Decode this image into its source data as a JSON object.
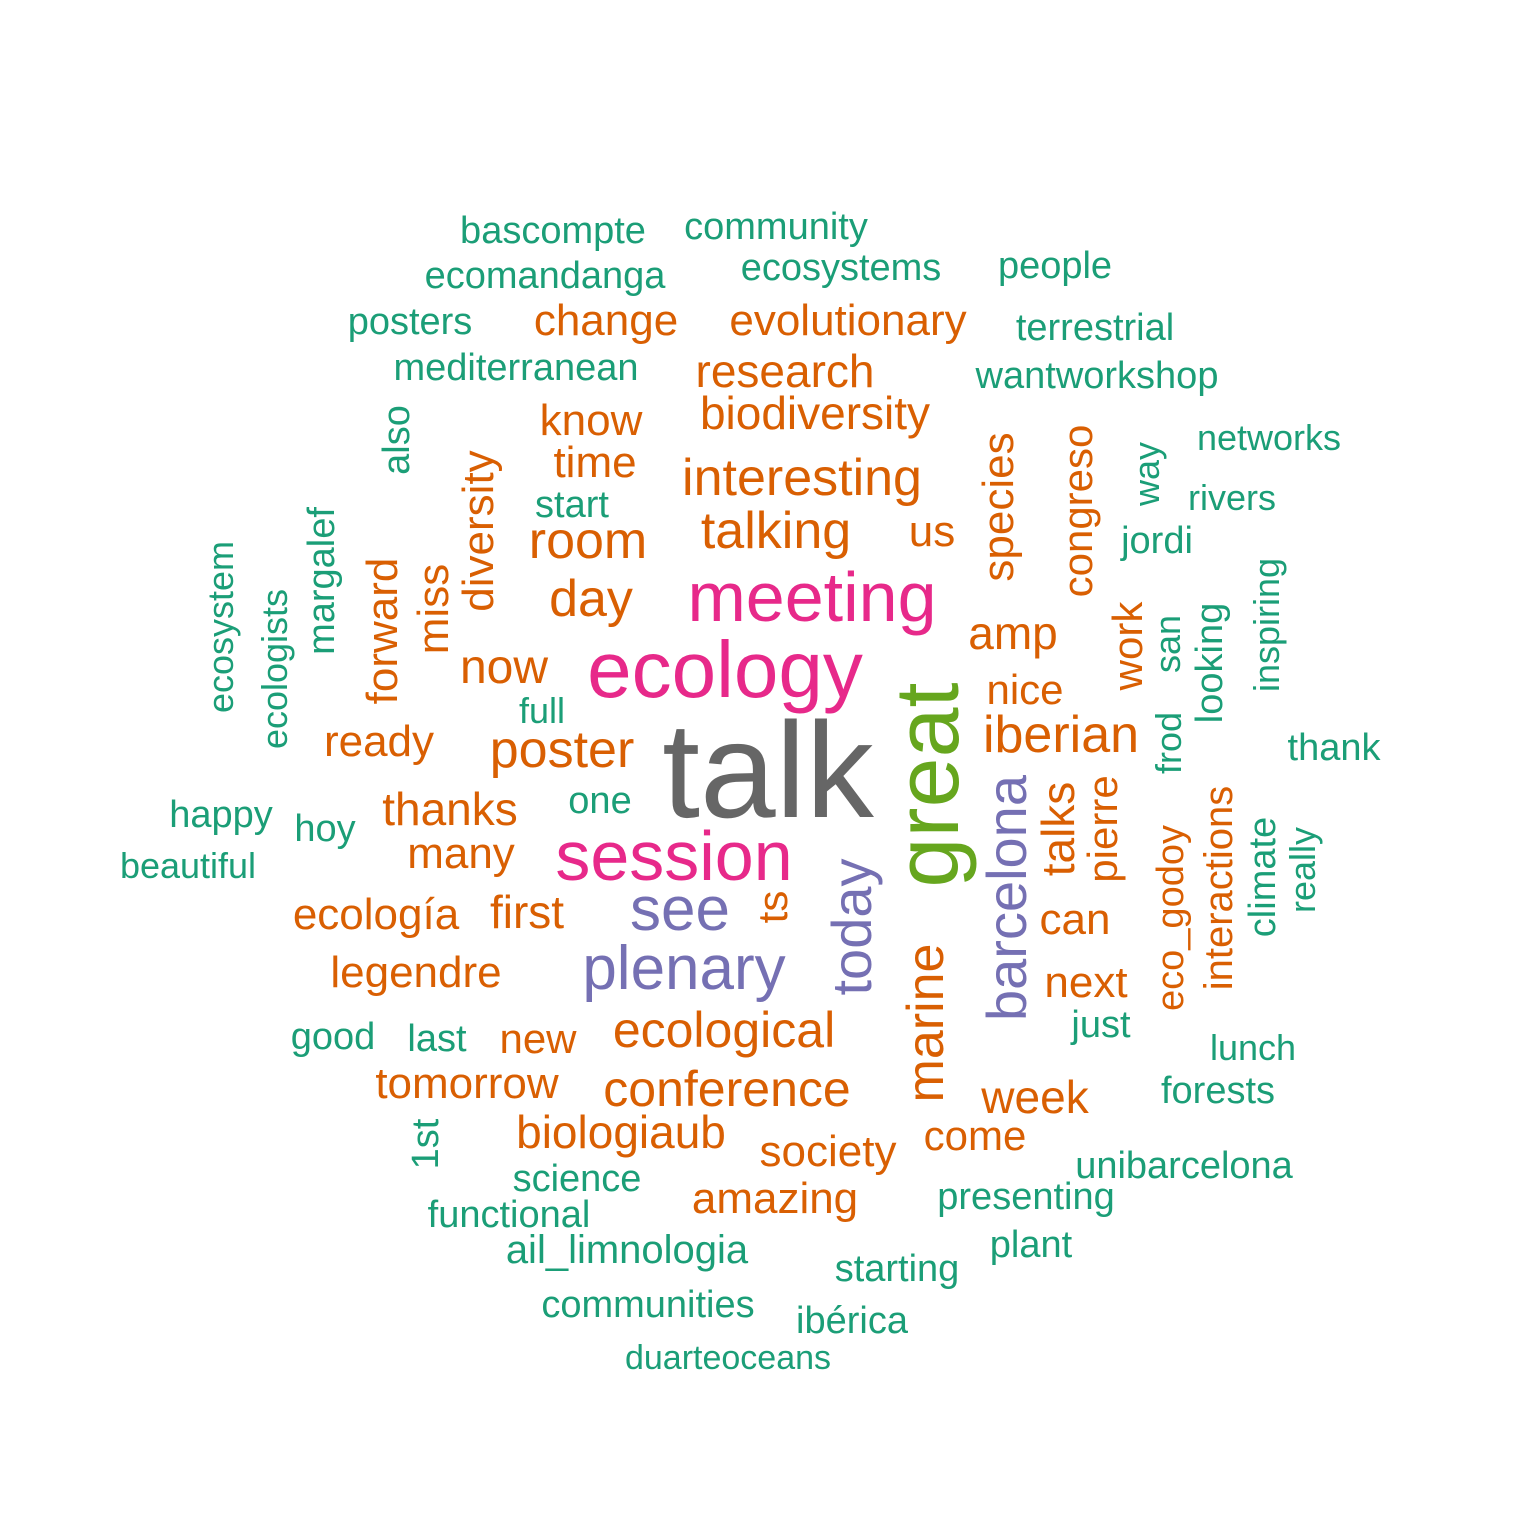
{
  "palette": {
    "teal": "#1b9e77",
    "orange": "#d95f02",
    "purple": "#7570b3",
    "magenta": "#e7298a",
    "green": "#66a61e",
    "gray": "#666666"
  },
  "words": [
    {
      "text": "talk",
      "color": "gray"
    },
    {
      "text": "great",
      "color": "green"
    },
    {
      "text": "ecology",
      "color": "magenta"
    },
    {
      "text": "meeting",
      "color": "magenta"
    },
    {
      "text": "session",
      "color": "magenta"
    },
    {
      "text": "see",
      "color": "purple"
    },
    {
      "text": "plenary",
      "color": "purple"
    },
    {
      "text": "today",
      "color": "purple"
    },
    {
      "text": "barcelona",
      "color": "purple"
    },
    {
      "text": "iberian",
      "color": "orange"
    },
    {
      "text": "marine",
      "color": "orange"
    },
    {
      "text": "poster",
      "color": "orange"
    },
    {
      "text": "ecological",
      "color": "orange"
    },
    {
      "text": "conference",
      "color": "orange"
    },
    {
      "text": "talking",
      "color": "orange"
    },
    {
      "text": "room",
      "color": "orange"
    },
    {
      "text": "interesting",
      "color": "orange"
    },
    {
      "text": "day",
      "color": "orange"
    },
    {
      "text": "biodiversity",
      "color": "orange"
    },
    {
      "text": "research",
      "color": "orange"
    },
    {
      "text": "evolutionary",
      "color": "orange"
    },
    {
      "text": "change",
      "color": "orange"
    },
    {
      "text": "know",
      "color": "orange"
    },
    {
      "text": "time",
      "color": "orange"
    },
    {
      "text": "us",
      "color": "orange"
    },
    {
      "text": "species",
      "color": "orange"
    },
    {
      "text": "congreso",
      "color": "orange"
    },
    {
      "text": "amp",
      "color": "orange"
    },
    {
      "text": "nice",
      "color": "orange"
    },
    {
      "text": "work",
      "color": "orange"
    },
    {
      "text": "talks",
      "color": "orange"
    },
    {
      "text": "pierre",
      "color": "orange"
    },
    {
      "text": "can",
      "color": "orange"
    },
    {
      "text": "next",
      "color": "orange"
    },
    {
      "text": "now",
      "color": "orange"
    },
    {
      "text": "diversity",
      "color": "orange"
    },
    {
      "text": "miss",
      "color": "orange"
    },
    {
      "text": "forward",
      "color": "orange"
    },
    {
      "text": "ready",
      "color": "orange"
    },
    {
      "text": "thanks",
      "color": "orange"
    },
    {
      "text": "many",
      "color": "orange"
    },
    {
      "text": "first",
      "color": "orange"
    },
    {
      "text": "ecología",
      "color": "orange"
    },
    {
      "text": "ts",
      "color": "orange"
    },
    {
      "text": "legendre",
      "color": "orange"
    },
    {
      "text": "new",
      "color": "orange"
    },
    {
      "text": "tomorrow",
      "color": "orange"
    },
    {
      "text": "biologiaub",
      "color": "orange"
    },
    {
      "text": "society",
      "color": "orange"
    },
    {
      "text": "amazing",
      "color": "orange"
    },
    {
      "text": "come",
      "color": "orange"
    },
    {
      "text": "week",
      "color": "orange"
    },
    {
      "text": "eco_godoy",
      "color": "orange"
    },
    {
      "text": "interactions",
      "color": "orange"
    },
    {
      "text": "bascompte",
      "color": "teal"
    },
    {
      "text": "community",
      "color": "teal"
    },
    {
      "text": "ecomandanga",
      "color": "teal"
    },
    {
      "text": "ecosystems",
      "color": "teal"
    },
    {
      "text": "people",
      "color": "teal"
    },
    {
      "text": "posters",
      "color": "teal"
    },
    {
      "text": "terrestrial",
      "color": "teal"
    },
    {
      "text": "mediterranean",
      "color": "teal"
    },
    {
      "text": "wantworkshop",
      "color": "teal"
    },
    {
      "text": "networks",
      "color": "teal"
    },
    {
      "text": "rivers",
      "color": "teal"
    },
    {
      "text": "jordi",
      "color": "teal"
    },
    {
      "text": "way",
      "color": "teal"
    },
    {
      "text": "also",
      "color": "teal"
    },
    {
      "text": "start",
      "color": "teal"
    },
    {
      "text": "margalef",
      "color": "teal"
    },
    {
      "text": "ecosystem",
      "color": "teal"
    },
    {
      "text": "ecologists",
      "color": "teal"
    },
    {
      "text": "full",
      "color": "teal"
    },
    {
      "text": "one",
      "color": "teal"
    },
    {
      "text": "happy",
      "color": "teal"
    },
    {
      "text": "hoy",
      "color": "teal"
    },
    {
      "text": "beautiful",
      "color": "teal"
    },
    {
      "text": "good",
      "color": "teal"
    },
    {
      "text": "last",
      "color": "teal"
    },
    {
      "text": "just",
      "color": "teal"
    },
    {
      "text": "lunch",
      "color": "teal"
    },
    {
      "text": "forests",
      "color": "teal"
    },
    {
      "text": "unibarcelona",
      "color": "teal"
    },
    {
      "text": "presenting",
      "color": "teal"
    },
    {
      "text": "plant",
      "color": "teal"
    },
    {
      "text": "starting",
      "color": "teal"
    },
    {
      "text": "ibérica",
      "color": "teal"
    },
    {
      "text": "communities",
      "color": "teal"
    },
    {
      "text": "duarteoceans",
      "color": "teal"
    },
    {
      "text": "ail_limnologia",
      "color": "teal"
    },
    {
      "text": "functional",
      "color": "teal"
    },
    {
      "text": "science",
      "color": "teal"
    },
    {
      "text": "1st",
      "color": "teal"
    },
    {
      "text": "san",
      "color": "teal"
    },
    {
      "text": "frod",
      "color": "teal"
    },
    {
      "text": "looking",
      "color": "teal"
    },
    {
      "text": "inspiring",
      "color": "teal"
    },
    {
      "text": "thank",
      "color": "teal"
    },
    {
      "text": "climate",
      "color": "teal"
    },
    {
      "text": "really",
      "color": "teal"
    }
  ]
}
